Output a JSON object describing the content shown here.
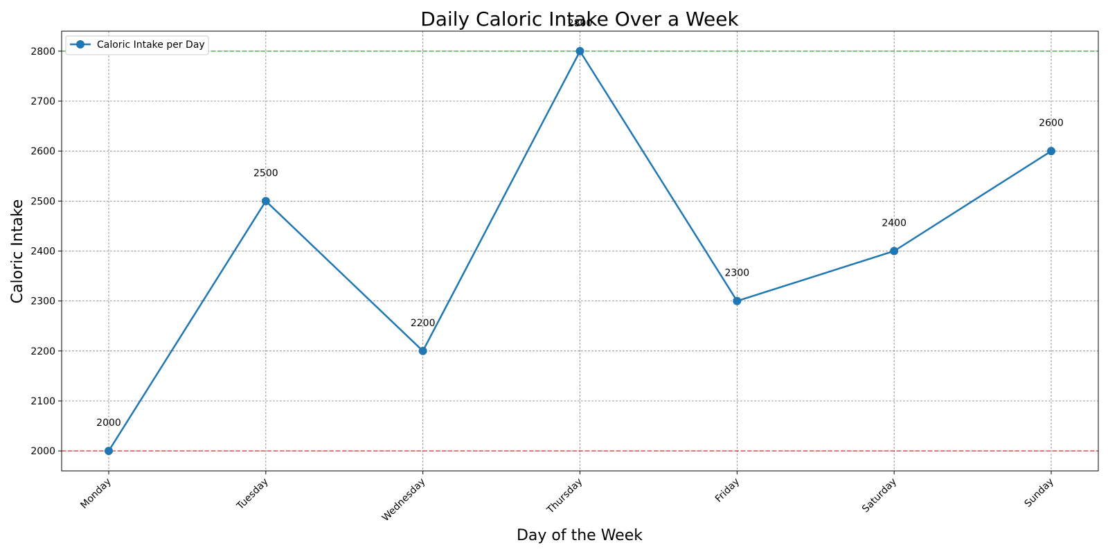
{
  "chart_data": {
    "type": "line",
    "title": "Daily Caloric Intake Over a Week",
    "xlabel": "Day of the Week",
    "ylabel": "Caloric Intake",
    "categories": [
      "Monday",
      "Tuesday",
      "Wednesday",
      "Thursday",
      "Friday",
      "Saturday",
      "Sunday"
    ],
    "series": [
      {
        "name": "Caloric Intake per Day",
        "values": [
          2000,
          2500,
          2200,
          2800,
          2300,
          2400,
          2600
        ],
        "color": "#1f77b4"
      }
    ],
    "data_labels": [
      "2000",
      "2500",
      "2200",
      "2800",
      "2300",
      "2400",
      "2600"
    ],
    "ylim": [
      1960,
      2840
    ],
    "yticks": [
      2000,
      2100,
      2200,
      2300,
      2400,
      2500,
      2600,
      2700,
      2800
    ],
    "reference_lines": [
      {
        "value": 2800,
        "color": "#2ca02c",
        "style": "dashed"
      },
      {
        "value": 2000,
        "color": "#d62728",
        "style": "dashed"
      }
    ],
    "grid": true,
    "legend_position": "top-left",
    "xtick_rotation": 45
  }
}
